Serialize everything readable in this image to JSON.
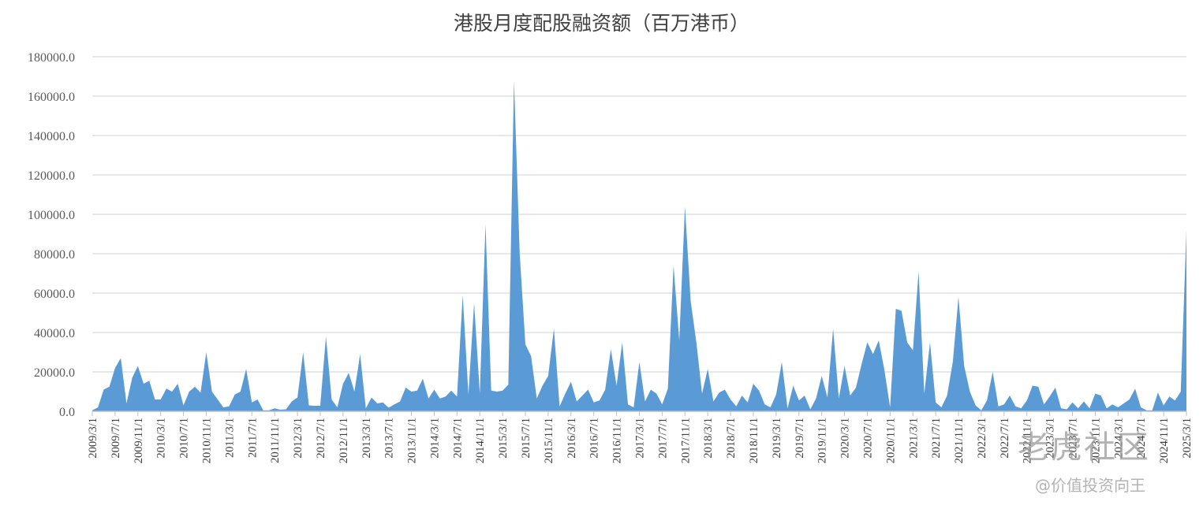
{
  "chart_data": {
    "type": "area",
    "title": "港股月度配股融资额（百万港币）",
    "ylim": [
      0,
      180000
    ],
    "y_ticks": [
      "0.0",
      "20000.0",
      "40000.0",
      "60000.0",
      "80000.0",
      "100000.0",
      "120000.0",
      "140000.0",
      "160000.0",
      "180000.0"
    ],
    "x_ticks": [
      "2009/3/1",
      "2009/7/1",
      "2009/11/1",
      "2010/3/1",
      "2010/7/1",
      "2010/11/1",
      "2011/3/1",
      "2011/7/1",
      "2011/11/1",
      "2012/3/1",
      "2012/7/1",
      "2012/11/1",
      "2013/3/1",
      "2013/7/1",
      "2013/11/1",
      "2014/3/1",
      "2014/7/1",
      "2014/11/1",
      "2015/3/1",
      "2015/7/1",
      "2015/11/1",
      "2016/3/1",
      "2016/7/1",
      "2016/11/1",
      "2017/3/1",
      "2017/7/1",
      "2017/11/1",
      "2018/3/1",
      "2018/7/1",
      "2018/11/1",
      "2019/3/1",
      "2019/7/1",
      "2019/11/1",
      "2020/3/1",
      "2020/7/1",
      "2020/11/1",
      "2021/3/1",
      "2021/7/1",
      "2021/11/1",
      "2022/3/1",
      "2022/7/1",
      "2022/11/1",
      "2023/3/1",
      "2023/7/1",
      "2023/11/1",
      "2024/3/1",
      "2024/7/1",
      "2024/11/1",
      "2025/3/1"
    ],
    "x_start": "2009/3/1",
    "x_end": "2025/3/1",
    "values": [
      500,
      2000,
      11000,
      12500,
      22000,
      27000,
      4000,
      17000,
      23000,
      14000,
      15500,
      6000,
      6000,
      11500,
      10000,
      14000,
      3000,
      10000,
      12500,
      9500,
      30000,
      10000,
      6000,
      2000,
      2500,
      8500,
      10000,
      21500,
      4500,
      6000,
      500,
      500,
      1500,
      800,
      1000,
      5000,
      7000,
      30000,
      3000,
      2800,
      2800,
      38000,
      6000,
      2000,
      14000,
      19500,
      10000,
      29000,
      1500,
      7000,
      4000,
      4500,
      1800,
      3500,
      5000,
      12000,
      10000,
      10500,
      16500,
      6500,
      11000,
      6500,
      7500,
      10500,
      7500,
      59000,
      8500,
      55000,
      9000,
      95000,
      10500,
      10000,
      10500,
      13500,
      168000,
      80000,
      34000,
      28000,
      6500,
      13000,
      18000,
      42000,
      2500,
      9000,
      15000,
      5000,
      8000,
      11000,
      4500,
      5500,
      11000,
      31500,
      13000,
      35000,
      3500,
      2000,
      25000,
      5000,
      11000,
      9000,
      3500,
      11500,
      74000,
      36000,
      104000,
      56000,
      35000,
      9000,
      21500,
      5000,
      9500,
      11000,
      6000,
      2500,
      8000,
      4500,
      14000,
      10500,
      3500,
      2000,
      8500,
      25000,
      1500,
      13000,
      5500,
      8000,
      1000,
      6500,
      18000,
      7000,
      42000,
      6500,
      23000,
      8000,
      12000,
      24000,
      35000,
      29000,
      36000,
      21000,
      2000,
      52000,
      51000,
      35000,
      31000,
      71000,
      9000,
      35000,
      4500,
      2000,
      8000,
      25000,
      58000,
      23000,
      10000,
      3000,
      500,
      5500,
      20000,
      2500,
      3500,
      8000,
      2500,
      1500,
      5500,
      13000,
      12500,
      3500,
      7500,
      12000,
      1500,
      1000,
      4500,
      1500,
      5000,
      1500,
      9000,
      8000,
      1500,
      3500,
      2000,
      4000,
      6000,
      11500,
      2000,
      500,
      500,
      9500,
      3000,
      7500,
      5500,
      10000,
      92000
    ]
  },
  "watermark": {
    "brand": "老虎社区",
    "handle": "@价值投资向王"
  },
  "colors": {
    "area": "#5b9bd5",
    "grid": "#d9d9d9",
    "axis": "#bfbfbf"
  }
}
